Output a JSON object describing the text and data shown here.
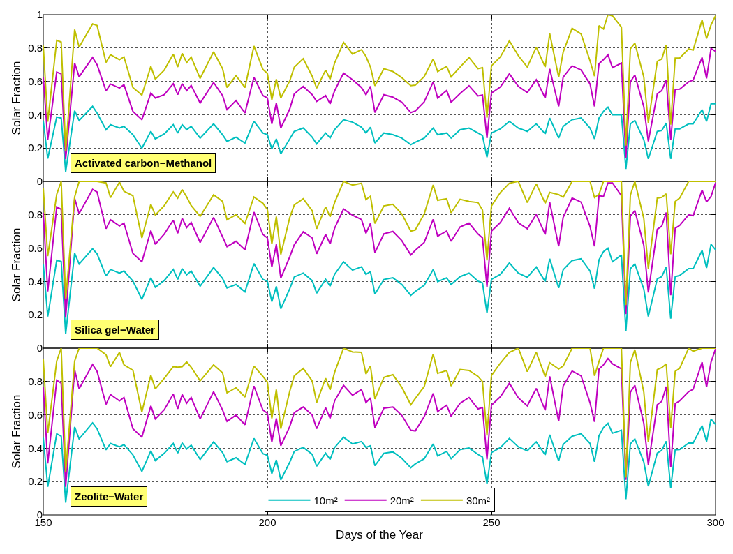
{
  "chart_data": [
    {
      "type": "line",
      "ylabel": "Solar Fraction",
      "annotations": [
        "Activated carbon−Methanol"
      ],
      "xlim": [
        150,
        300
      ],
      "xticks": [
        150,
        200,
        250,
        300
      ],
      "ylim": [
        0,
        1
      ],
      "yticks": [
        0,
        0.2,
        0.4,
        0.6,
        0.8,
        1
      ],
      "grid": true,
      "tick_labels": "y",
      "line_style": "solid",
      "x": [
        150,
        151,
        153,
        154,
        155,
        157,
        158,
        161,
        162,
        164,
        165,
        167,
        168,
        170,
        172,
        174,
        175,
        177,
        179,
        180,
        181,
        182,
        183,
        185,
        188,
        190,
        191,
        193,
        195,
        197,
        199,
        200,
        201,
        202,
        203,
        205,
        206,
        208,
        210,
        211,
        213,
        214,
        215,
        217,
        219,
        221,
        222,
        223,
        224,
        226,
        228,
        230,
        232,
        233,
        235,
        237,
        238,
        240,
        241,
        243,
        245,
        247,
        248,
        249,
        250,
        252,
        254,
        256,
        258,
        260,
        262,
        263,
        265,
        266,
        268,
        270,
        272,
        273,
        274,
        275,
        276,
        277,
        279,
        280,
        281,
        282,
        284,
        285,
        287,
        288,
        289,
        290,
        291,
        292,
        294,
        295,
        297,
        298,
        299,
        300
      ],
      "series": [
        {
          "color": "#00bfbf",
          "values": [
            0.365,
            0.137,
            0.386,
            0.38,
            0.058,
            0.424,
            0.365,
            0.45,
            0.41,
            0.31,
            0.34,
            0.32,
            0.33,
            0.28,
            0.2,
            0.3,
            0.255,
            0.285,
            0.34,
            0.29,
            0.34,
            0.31,
            0.33,
            0.26,
            0.345,
            0.28,
            0.24,
            0.265,
            0.23,
            0.36,
            0.29,
            0.28,
            0.195,
            0.255,
            0.165,
            0.255,
            0.3,
            0.32,
            0.265,
            0.225,
            0.29,
            0.26,
            0.31,
            0.37,
            0.355,
            0.325,
            0.29,
            0.325,
            0.23,
            0.29,
            0.28,
            0.26,
            0.22,
            0.235,
            0.26,
            0.32,
            0.28,
            0.29,
            0.26,
            0.31,
            0.32,
            0.29,
            0.275,
            0.145,
            0.29,
            0.315,
            0.36,
            0.32,
            0.3,
            0.345,
            0.285,
            0.38,
            0.26,
            0.33,
            0.37,
            0.38,
            0.32,
            0.255,
            0.38,
            0.42,
            0.445,
            0.4,
            0.4,
            0.075,
            0.345,
            0.365,
            0.25,
            0.135,
            0.3,
            0.305,
            0.35,
            0.135,
            0.315,
            0.315,
            0.345,
            0.345,
            0.43,
            0.36,
            0.465,
            0.465
          ]
        },
        {
          "color": "#bf00bf",
          "values": [
            0.625,
            0.25,
            0.655,
            0.645,
            0.133,
            0.71,
            0.627,
            0.743,
            0.7,
            0.543,
            0.584,
            0.56,
            0.58,
            0.42,
            0.37,
            0.53,
            0.5,
            0.52,
            0.586,
            0.52,
            0.586,
            0.545,
            0.575,
            0.47,
            0.593,
            0.515,
            0.43,
            0.485,
            0.41,
            0.625,
            0.515,
            0.5,
            0.345,
            0.47,
            0.32,
            0.435,
            0.525,
            0.57,
            0.52,
            0.48,
            0.515,
            0.465,
            0.543,
            0.65,
            0.61,
            0.563,
            0.52,
            0.57,
            0.413,
            0.52,
            0.505,
            0.475,
            0.413,
            0.422,
            0.477,
            0.597,
            0.5,
            0.545,
            0.475,
            0.527,
            0.574,
            0.513,
            0.518,
            0.26,
            0.53,
            0.567,
            0.645,
            0.57,
            0.533,
            0.61,
            0.5,
            0.675,
            0.45,
            0.625,
            0.693,
            0.668,
            0.584,
            0.45,
            0.706,
            0.73,
            0.76,
            0.682,
            0.71,
            0.14,
            0.597,
            0.638,
            0.447,
            0.24,
            0.525,
            0.545,
            0.608,
            0.25,
            0.552,
            0.553,
            0.597,
            0.608,
            0.743,
            0.618,
            0.797,
            0.78
          ]
        },
        {
          "color": "#bfbf00",
          "values": [
            0.815,
            0.358,
            0.846,
            0.836,
            0.18,
            0.911,
            0.805,
            0.945,
            0.935,
            0.713,
            0.76,
            0.73,
            0.747,
            0.563,
            0.518,
            0.69,
            0.613,
            0.668,
            0.764,
            0.686,
            0.768,
            0.713,
            0.745,
            0.618,
            0.777,
            0.676,
            0.563,
            0.634,
            0.563,
            0.812,
            0.672,
            0.648,
            0.49,
            0.613,
            0.5,
            0.604,
            0.685,
            0.736,
            0.631,
            0.559,
            0.668,
            0.613,
            0.71,
            0.834,
            0.764,
            0.79,
            0.75,
            0.686,
            0.573,
            0.676,
            0.659,
            0.622,
            0.574,
            0.577,
            0.629,
            0.734,
            0.659,
            0.69,
            0.627,
            0.686,
            0.743,
            0.676,
            0.682,
            0.382,
            0.693,
            0.747,
            0.843,
            0.754,
            0.686,
            0.805,
            0.686,
            0.887,
            0.625,
            0.775,
            0.918,
            0.884,
            0.723,
            0.631,
            0.934,
            0.914,
            1.0,
            0.993,
            0.925,
            0.215,
            0.795,
            0.829,
            0.625,
            0.352,
            0.72,
            0.734,
            0.819,
            0.34,
            0.74,
            0.74,
            0.795,
            0.788,
            0.968,
            0.857,
            0.939,
            0.993
          ]
        }
      ]
    },
    {
      "type": "line",
      "ylabel": "Solar Fraction",
      "annotations": [
        "Silica gel−Water"
      ],
      "xlim": [
        150,
        300
      ],
      "xticks": [
        150,
        200,
        250,
        300
      ],
      "ylim": [
        0,
        1
      ],
      "yticks": [
        0,
        0.2,
        0.4,
        0.6,
        0.8,
        {
          "value": 1,
          "label": null
        }
      ],
      "grid": true,
      "tick_labels": "y",
      "line_style": "solid",
      "x": [
        150,
        151,
        153,
        154,
        155,
        157,
        158,
        161,
        162,
        164,
        165,
        167,
        168,
        170,
        172,
        174,
        175,
        177,
        179,
        180,
        181,
        182,
        183,
        185,
        188,
        190,
        191,
        193,
        195,
        197,
        199,
        200,
        201,
        202,
        203,
        205,
        206,
        208,
        210,
        211,
        213,
        214,
        215,
        217,
        219,
        221,
        222,
        223,
        224,
        226,
        228,
        230,
        232,
        233,
        235,
        237,
        238,
        240,
        241,
        243,
        245,
        247,
        248,
        249,
        250,
        252,
        254,
        256,
        258,
        260,
        262,
        263,
        265,
        266,
        268,
        270,
        272,
        273,
        274,
        275,
        276,
        277,
        279,
        280,
        281,
        282,
        284,
        285,
        287,
        288,
        289,
        290,
        291,
        292,
        294,
        295,
        297,
        298,
        299,
        300
      ],
      "series": [
        {
          "color": "#00bfbf",
          "values": [
            0.505,
            0.19,
            0.527,
            0.52,
            0.085,
            0.57,
            0.505,
            0.596,
            0.566,
            0.433,
            0.472,
            0.45,
            0.463,
            0.402,
            0.293,
            0.422,
            0.365,
            0.406,
            0.472,
            0.413,
            0.477,
            0.44,
            0.462,
            0.372,
            0.484,
            0.418,
            0.361,
            0.382,
            0.338,
            0.507,
            0.412,
            0.402,
            0.279,
            0.37,
            0.236,
            0.357,
            0.427,
            0.45,
            0.405,
            0.33,
            0.413,
            0.372,
            0.443,
            0.518,
            0.468,
            0.488,
            0.443,
            0.459,
            0.324,
            0.412,
            0.422,
            0.382,
            0.317,
            0.34,
            0.377,
            0.472,
            0.399,
            0.422,
            0.382,
            0.429,
            0.45,
            0.402,
            0.391,
            0.211,
            0.413,
            0.443,
            0.511,
            0.45,
            0.425,
            0.487,
            0.399,
            0.536,
            0.361,
            0.47,
            0.525,
            0.536,
            0.463,
            0.357,
            0.53,
            0.579,
            0.6,
            0.518,
            0.559,
            0.104,
            0.477,
            0.505,
            0.354,
            0.19,
            0.416,
            0.429,
            0.487,
            0.177,
            0.429,
            0.436,
            0.477,
            0.477,
            0.586,
            0.481,
            0.623,
            0.59
          ]
        },
        {
          "color": "#bf00bf",
          "values": [
            0.812,
            0.34,
            0.848,
            0.832,
            0.183,
            0.898,
            0.807,
            0.952,
            0.937,
            0.716,
            0.77,
            0.733,
            0.75,
            0.568,
            0.518,
            0.705,
            0.623,
            0.685,
            0.768,
            0.689,
            0.778,
            0.723,
            0.754,
            0.634,
            0.784,
            0.668,
            0.609,
            0.641,
            0.59,
            0.816,
            0.682,
            0.661,
            0.487,
            0.623,
            0.42,
            0.549,
            0.62,
            0.698,
            0.661,
            0.566,
            0.682,
            0.625,
            0.719,
            0.835,
            0.798,
            0.771,
            0.689,
            0.748,
            0.573,
            0.686,
            0.7,
            0.645,
            0.559,
            0.587,
            0.634,
            0.773,
            0.672,
            0.702,
            0.641,
            0.727,
            0.75,
            0.685,
            0.661,
            0.368,
            0.702,
            0.754,
            0.839,
            0.752,
            0.716,
            0.802,
            0.682,
            0.876,
            0.611,
            0.784,
            0.9,
            0.876,
            0.73,
            0.611,
            0.914,
            0.91,
            0.991,
            0.991,
            0.914,
            0.204,
            0.791,
            0.825,
            0.616,
            0.334,
            0.713,
            0.732,
            0.814,
            0.317,
            0.719,
            0.736,
            0.8,
            0.795,
            0.948,
            0.877,
            0.91,
            0.991
          ]
        },
        {
          "color": "#bfbf00",
          "values": [
            0.962,
            0.552,
            0.923,
            1.0,
            0.293,
            0.907,
            1.0,
            1.0,
            1.0,
            0.991,
            0.903,
            0.996,
            0.941,
            0.914,
            0.661,
            0.863,
            0.798,
            0.855,
            0.937,
            0.9,
            0.951,
            0.907,
            0.855,
            0.791,
            0.92,
            0.88,
            0.77,
            0.8,
            0.748,
            0.907,
            0.869,
            0.832,
            0.625,
            0.789,
            0.562,
            0.784,
            0.859,
            0.896,
            0.825,
            0.716,
            0.848,
            0.788,
            0.873,
            1.0,
            0.978,
            0.989,
            0.891,
            0.911,
            0.748,
            0.853,
            0.863,
            0.805,
            0.702,
            0.709,
            0.805,
            0.979,
            0.887,
            0.896,
            0.812,
            0.893,
            0.88,
            0.873,
            0.828,
            0.527,
            0.853,
            0.934,
            0.989,
            1.0,
            0.873,
            0.986,
            0.869,
            0.934,
            0.921,
            0.905,
            1.0,
            1.0,
            1.0,
            0.903,
            0.923,
            1.0,
            1.0,
            1.0,
            1.0,
            0.259,
            0.918,
            1.0,
            0.777,
            0.477,
            0.9,
            0.905,
            0.925,
            0.563,
            0.88,
            0.9,
            1.0,
            1.0,
            1.0,
            1.0,
            1.0,
            1.0
          ]
        }
      ]
    },
    {
      "type": "line",
      "xlabel": "Days of the Year",
      "ylabel": "Solar Fraction",
      "annotations": [
        "Zeolite−Water"
      ],
      "xlim": [
        150,
        300
      ],
      "xticks": [
        150,
        200,
        250,
        300
      ],
      "ylim": [
        0,
        1
      ],
      "yticks": [
        0,
        0.2,
        0.4,
        0.6,
        0.8,
        {
          "value": 1,
          "label": null
        }
      ],
      "grid": true,
      "legend": "bottom",
      "line_style": "solid",
      "x": [
        150,
        151,
        153,
        154,
        155,
        157,
        158,
        161,
        162,
        164,
        165,
        167,
        168,
        170,
        172,
        174,
        175,
        177,
        179,
        180,
        181,
        182,
        183,
        185,
        188,
        190,
        191,
        193,
        195,
        197,
        199,
        200,
        201,
        202,
        203,
        205,
        206,
        208,
        210,
        211,
        213,
        214,
        215,
        217,
        219,
        221,
        222,
        223,
        224,
        226,
        228,
        230,
        232,
        233,
        235,
        237,
        238,
        240,
        241,
        243,
        245,
        247,
        248,
        249,
        250,
        252,
        254,
        256,
        258,
        260,
        262,
        263,
        265,
        266,
        268,
        270,
        272,
        273,
        274,
        275,
        276,
        277,
        279,
        280,
        281,
        282,
        284,
        285,
        287,
        288,
        289,
        290,
        291,
        292,
        294,
        295,
        297,
        298,
        299,
        300
      ],
      "series": [
        {
          "name": "10m²",
          "color": "#00bfbf",
          "values": [
            0.463,
            0.169,
            0.486,
            0.472,
            0.074,
            0.528,
            0.456,
            0.552,
            0.517,
            0.39,
            0.429,
            0.408,
            0.422,
            0.36,
            0.261,
            0.384,
            0.326,
            0.37,
            0.429,
            0.371,
            0.431,
            0.395,
            0.418,
            0.333,
            0.438,
            0.374,
            0.319,
            0.343,
            0.303,
            0.459,
            0.367,
            0.358,
            0.248,
            0.33,
            0.21,
            0.317,
            0.381,
            0.405,
            0.363,
            0.292,
            0.37,
            0.333,
            0.404,
            0.466,
            0.426,
            0.44,
            0.405,
            0.415,
            0.295,
            0.37,
            0.378,
            0.34,
            0.283,
            0.306,
            0.337,
            0.426,
            0.354,
            0.381,
            0.337,
            0.392,
            0.401,
            0.363,
            0.347,
            0.187,
            0.374,
            0.404,
            0.459,
            0.408,
            0.385,
            0.438,
            0.36,
            0.481,
            0.324,
            0.422,
            0.472,
            0.487,
            0.429,
            0.319,
            0.476,
            0.524,
            0.549,
            0.49,
            0.508,
            0.094,
            0.426,
            0.456,
            0.317,
            0.172,
            0.371,
            0.388,
            0.442,
            0.162,
            0.39,
            0.392,
            0.431,
            0.431,
            0.535,
            0.44,
            0.575,
            0.542
          ]
        },
        {
          "name": "20m²",
          "color": "#bf00bf",
          "values": [
            0.77,
            0.309,
            0.808,
            0.79,
            0.169,
            0.87,
            0.756,
            0.902,
            0.861,
            0.663,
            0.722,
            0.684,
            0.704,
            0.517,
            0.467,
            0.654,
            0.576,
            0.631,
            0.725,
            0.636,
            0.722,
            0.67,
            0.704,
            0.576,
            0.739,
            0.629,
            0.561,
            0.599,
            0.541,
            0.773,
            0.629,
            0.61,
            0.438,
            0.579,
            0.415,
            0.531,
            0.613,
            0.647,
            0.599,
            0.517,
            0.643,
            0.579,
            0.684,
            0.777,
            0.718,
            0.752,
            0.674,
            0.702,
            0.524,
            0.64,
            0.647,
            0.597,
            0.508,
            0.504,
            0.59,
            0.729,
            0.62,
            0.658,
            0.592,
            0.67,
            0.704,
            0.636,
            0.644,
            0.333,
            0.658,
            0.709,
            0.79,
            0.702,
            0.654,
            0.759,
            0.627,
            0.831,
            0.562,
            0.773,
            0.863,
            0.834,
            0.672,
            0.558,
            0.875,
            0.9,
            0.938,
            0.906,
            0.876,
            0.21,
            0.736,
            0.777,
            0.549,
            0.302,
            0.661,
            0.681,
            0.77,
            0.285,
            0.668,
            0.684,
            0.739,
            0.754,
            0.916,
            0.766,
            0.917,
            0.995
          ]
        },
        {
          "name": "30m²",
          "color": "#bfbf00",
          "values": [
            0.934,
            0.49,
            0.923,
            1.0,
            0.258,
            0.923,
            1.0,
            1.0,
            1.0,
            0.961,
            0.889,
            0.975,
            0.9,
            0.868,
            0.617,
            0.838,
            0.756,
            0.82,
            0.889,
            0.886,
            0.889,
            0.917,
            0.886,
            0.804,
            0.9,
            0.852,
            0.732,
            0.763,
            0.707,
            0.893,
            0.831,
            0.797,
            0.579,
            0.752,
            0.517,
            0.743,
            0.834,
            0.879,
            0.804,
            0.674,
            0.82,
            0.75,
            0.855,
            1.0,
            0.977,
            0.975,
            0.845,
            0.893,
            0.695,
            0.825,
            0.841,
            0.766,
            0.661,
            0.698,
            0.77,
            0.965,
            0.849,
            0.866,
            0.773,
            0.872,
            0.866,
            0.831,
            0.8,
            0.476,
            0.836,
            0.911,
            0.975,
            1.0,
            0.859,
            0.975,
            0.829,
            0.913,
            0.875,
            0.893,
            1.0,
            1.0,
            1.0,
            0.834,
            0.92,
            1.0,
            1.0,
            1.0,
            1.0,
            0.224,
            0.913,
            0.991,
            0.736,
            0.436,
            0.872,
            0.883,
            0.906,
            0.522,
            0.861,
            0.879,
            1.0,
            0.982,
            1.0,
            1.0,
            1.0,
            1.0
          ]
        }
      ]
    }
  ]
}
